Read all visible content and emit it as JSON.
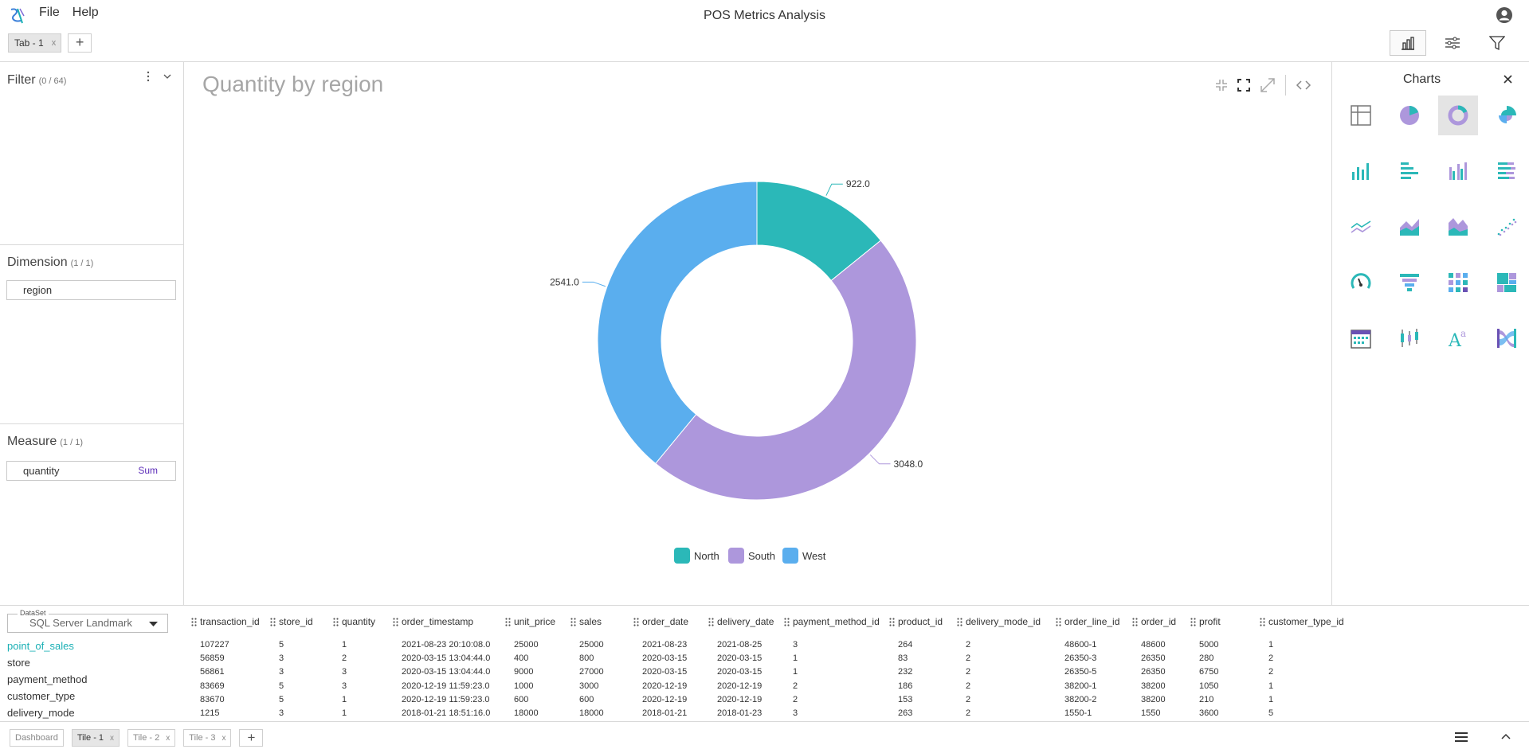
{
  "app": {
    "title": "POS Metrics Analysis",
    "menu": [
      "File",
      "Help"
    ]
  },
  "tabs": [
    {
      "label": "Tab - 1",
      "close": "x"
    }
  ],
  "left": {
    "filter": {
      "title": "Filter",
      "count": "(0 / 64)"
    },
    "dimension": {
      "title": "Dimension",
      "count": "(1 / 1)",
      "field": "region"
    },
    "measure": {
      "title": "Measure",
      "count": "(1 / 1)",
      "field": "quantity",
      "aggregation": "Sum"
    }
  },
  "charts_panel": {
    "title": "Charts",
    "types": [
      "table",
      "pie",
      "donut",
      "nightingale",
      "column",
      "bar",
      "grouped-column",
      "stacked-bar",
      "line",
      "area",
      "stacked-area",
      "scatter",
      "gauge",
      "funnel",
      "heatmap",
      "treemap",
      "calendar",
      "candlestick",
      "word-cloud",
      "sankey"
    ],
    "selected": "donut"
  },
  "chart_data": {
    "type": "pie",
    "variant": "donut",
    "title": "Quantity by region",
    "categories": [
      "North",
      "South",
      "West"
    ],
    "values": [
      922.0,
      3048.0,
      2541.0
    ],
    "value_labels": [
      "922.0",
      "3048.0",
      "2541.0"
    ],
    "colors": [
      "#2bb8b8",
      "#ad97dc",
      "#5aaeee"
    ],
    "legend_position": "bottom"
  },
  "dataset": {
    "label": "DataSet",
    "value": "SQL Server Landmark",
    "tables": [
      "point_of_sales",
      "store",
      "payment_method",
      "customer_type",
      "delivery_mode"
    ],
    "active_table": "point_of_sales",
    "columns": [
      "transaction_id",
      "store_id",
      "quantity",
      "order_timestamp",
      "unit_price",
      "sales",
      "order_date",
      "delivery_date",
      "payment_method_id",
      "product_id",
      "delivery_mode_id",
      "order_line_id",
      "order_id",
      "profit",
      "customer_type_id"
    ],
    "rows": [
      [
        "107227",
        "5",
        "1",
        "2021-08-23 20:10:08.0",
        "25000",
        "25000",
        "2021-08-23",
        "2021-08-25",
        "3",
        "264",
        "2",
        "48600-1",
        "48600",
        "5000",
        "1"
      ],
      [
        "56859",
        "3",
        "2",
        "2020-03-15 13:04:44.0",
        "400",
        "800",
        "2020-03-15",
        "2020-03-15",
        "1",
        "83",
        "2",
        "26350-3",
        "26350",
        "280",
        "2"
      ],
      [
        "56861",
        "3",
        "3",
        "2020-03-15 13:04:44.0",
        "9000",
        "27000",
        "2020-03-15",
        "2020-03-15",
        "1",
        "232",
        "2",
        "26350-5",
        "26350",
        "6750",
        "2"
      ],
      [
        "83669",
        "5",
        "3",
        "2020-12-19 11:59:23.0",
        "1000",
        "3000",
        "2020-12-19",
        "2020-12-19",
        "2",
        "186",
        "2",
        "38200-1",
        "38200",
        "1050",
        "1"
      ],
      [
        "83670",
        "5",
        "1",
        "2020-12-19 11:59:23.0",
        "600",
        "600",
        "2020-12-19",
        "2020-12-19",
        "2",
        "153",
        "2",
        "38200-2",
        "38200",
        "210",
        "1"
      ],
      [
        "1215",
        "3",
        "1",
        "2018-01-21 18:51:16.0",
        "18000",
        "18000",
        "2018-01-21",
        "2018-01-23",
        "3",
        "263",
        "2",
        "1550-1",
        "1550",
        "3600",
        "5"
      ]
    ]
  },
  "tiles": [
    {
      "label": "Dashboard",
      "close": ""
    },
    {
      "label": "Tile - 1",
      "close": "x"
    },
    {
      "label": "Tile - 2",
      "close": "x"
    },
    {
      "label": "Tile - 3",
      "close": "x"
    }
  ],
  "active_tile": "Tile - 1"
}
